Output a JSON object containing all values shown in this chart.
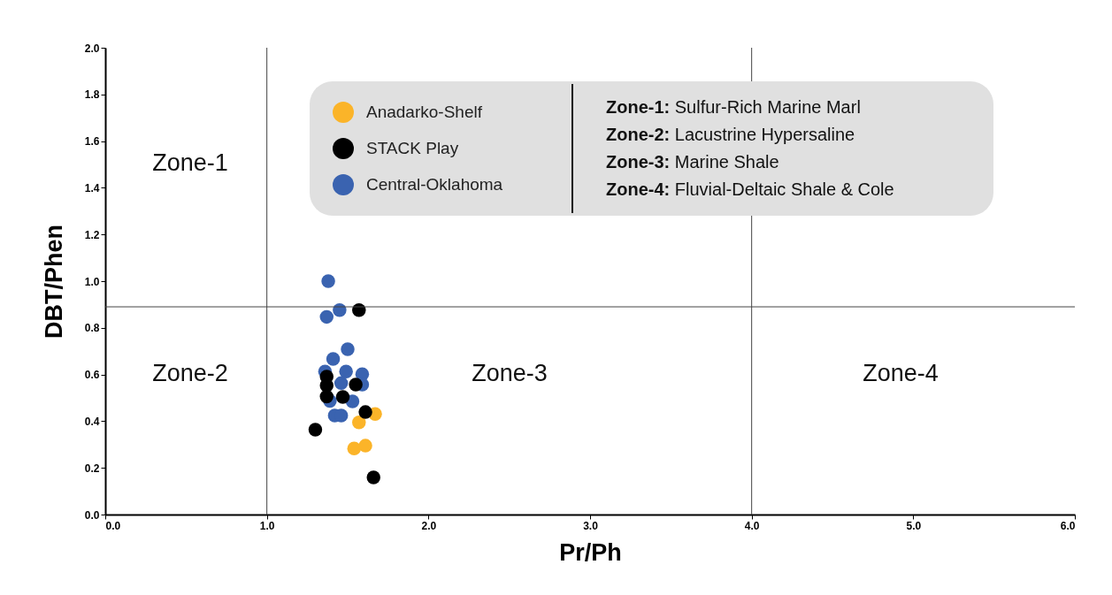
{
  "chart_data": {
    "type": "scatter",
    "xlabel": "Pr/Ph",
    "ylabel": "DBT/Phen",
    "series": [
      {
        "name": "Anadarko-Shelf",
        "color": "#fbb429",
        "x": [
          1.67,
          1.57,
          1.54,
          1.61
        ],
        "values": [
          0.431,
          0.395,
          0.283,
          0.295
        ]
      },
      {
        "name": "STACK Play",
        "color": "#000000",
        "x": [
          1.57,
          1.37,
          1.37,
          1.55,
          1.37,
          1.47,
          1.61,
          1.3,
          1.66
        ],
        "values": [
          0.876,
          0.591,
          0.553,
          0.557,
          0.506,
          0.504,
          0.439,
          0.364,
          0.159
        ]
      },
      {
        "name": "Central-Oklahoma",
        "color": "#3a63b0",
        "x": [
          1.38,
          1.45,
          1.37,
          1.5,
          1.41,
          1.36,
          1.49,
          1.59,
          1.46,
          1.59,
          1.39,
          1.53,
          1.42,
          1.46
        ],
        "values": [
          1.0,
          0.876,
          0.847,
          0.708,
          0.667,
          0.613,
          0.613,
          0.601,
          0.563,
          0.557,
          0.487,
          0.485,
          0.424,
          0.424
        ]
      }
    ],
    "xlim": [
      0,
      6
    ],
    "xticks": [
      {
        "value": 0,
        "label": "0.0"
      },
      {
        "value": 1,
        "label": "1.0"
      },
      {
        "value": 2,
        "label": "2.0"
      },
      {
        "value": 3,
        "label": "3.0"
      },
      {
        "value": 4,
        "label": "4.0"
      },
      {
        "value": 5,
        "label": "5.0"
      },
      {
        "value": 6,
        "label": "6.0"
      }
    ],
    "ylim": [
      0,
      2
    ],
    "yticks": [
      {
        "value": 0,
        "label": "0.0"
      },
      {
        "value": 0.2,
        "label": "0.2"
      },
      {
        "value": 0.4,
        "label": "0.4"
      },
      {
        "value": 0.6,
        "label": "0.6"
      },
      {
        "value": 0.8,
        "label": "0.8"
      },
      {
        "value": 1,
        "label": "1.0"
      },
      {
        "value": 1.2,
        "label": "1.2"
      },
      {
        "value": 1.4,
        "label": "1.4"
      },
      {
        "value": 1.6,
        "label": "1.6"
      },
      {
        "value": 1.8,
        "label": "1.8"
      },
      {
        "value": 2,
        "label": "2.0"
      }
    ],
    "ref_lines": [
      {
        "axis": "x",
        "value": 1.0
      },
      {
        "axis": "y",
        "value": 0.89
      },
      {
        "axis": "x",
        "value": 4.0
      }
    ],
    "annotations": [
      "Zone-1",
      "Zone-2",
      "Zone-3",
      "Zone-4",
      "Zone-1: Sulfur-Rich Marine Marl",
      "Zone-2: Lacustrine Hypersaline",
      "Zone-3: Marine Shale",
      "Zone-4: Fluvial-Deltaic Shale & Cole"
    ],
    "grid": false,
    "legend": "top",
    "marker": "circle"
  }
}
